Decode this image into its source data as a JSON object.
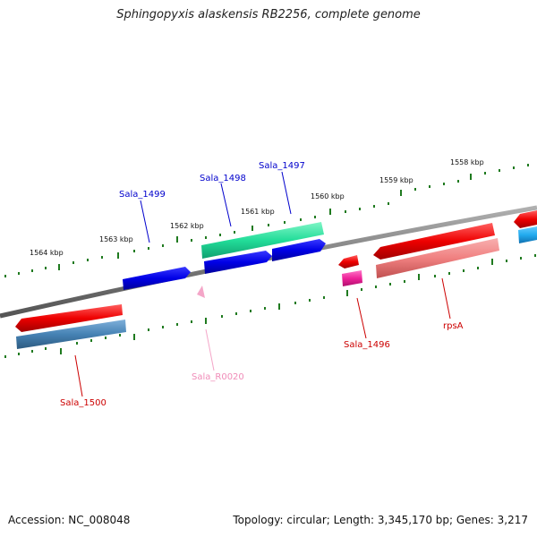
{
  "title": "Sphingopyxis alaskensis RB2256, complete genome",
  "footer": {
    "accession": "Accession: NC_008048",
    "summary": "Topology: circular; Length: 3,345,170 bp; Genes: 3,217"
  },
  "scale_labels": [
    "1558 kbp",
    "1559 kbp",
    "1560 kbp",
    "1561 kbp",
    "1562 kbp",
    "1563 kbp",
    "1564 kbp"
  ],
  "gene_labels": {
    "sala_1497": "Sala_1497",
    "sala_1498": "Sala_1498",
    "sala_1499": "Sala_1499",
    "sala_1500": "Sala_1500",
    "sala_r0020": "Sala_R0020",
    "sala_1496": "Sala_1496",
    "rpsa": "rpsA"
  },
  "colors": {
    "backbone": "#7a7a7a",
    "tick": "#1f7a1f",
    "blue_gene": "#0000e6",
    "teal_gene": "#22dd99",
    "red_gene": "#ee0000",
    "pink_gene": "#ee2299",
    "salmon_gene": "#f08080",
    "steel_gene": "#4682b4",
    "cyan_gene": "#22aaee",
    "rna_gene": "#f4a6c8"
  }
}
